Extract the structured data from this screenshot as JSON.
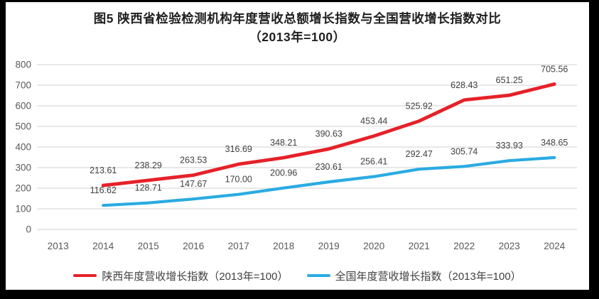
{
  "title": {
    "line1": "图5  陕西省检验检测机构年度营收总额增长指数与全国营收增长指数对比",
    "line2": "（2013年=100）"
  },
  "chart_data": {
    "type": "line",
    "categories": [
      "2013",
      "2014",
      "2015",
      "2016",
      "2017",
      "2018",
      "2019",
      "2020",
      "2021",
      "2022",
      "2023",
      "2024"
    ],
    "series": [
      {
        "name": "陕西年度营收增长指数（2013年=100）",
        "color": "#e62129",
        "values": [
          null,
          213.61,
          238.29,
          263.53,
          316.69,
          348.21,
          390.63,
          453.44,
          525.92,
          628.43,
          651.25,
          705.56
        ]
      },
      {
        "name": "全国年度营收增长指数（2013年=100）",
        "color": "#2aabe2",
        "values": [
          null,
          116.62,
          128.71,
          147.67,
          170.0,
          200.96,
          230.61,
          256.41,
          292.47,
          305.74,
          333.93,
          348.65
        ]
      }
    ],
    "ylim": [
      0,
      800
    ],
    "y_ticks": [
      0,
      100,
      200,
      300,
      400,
      500,
      600,
      700,
      800
    ],
    "grid": true,
    "legend_position": "bottom",
    "data_labels": true,
    "label_decimals": 2,
    "colors": {
      "gridline": "#d9d9d9",
      "tick_text": "#595959",
      "data_label_text": "#3f3f3f"
    }
  }
}
